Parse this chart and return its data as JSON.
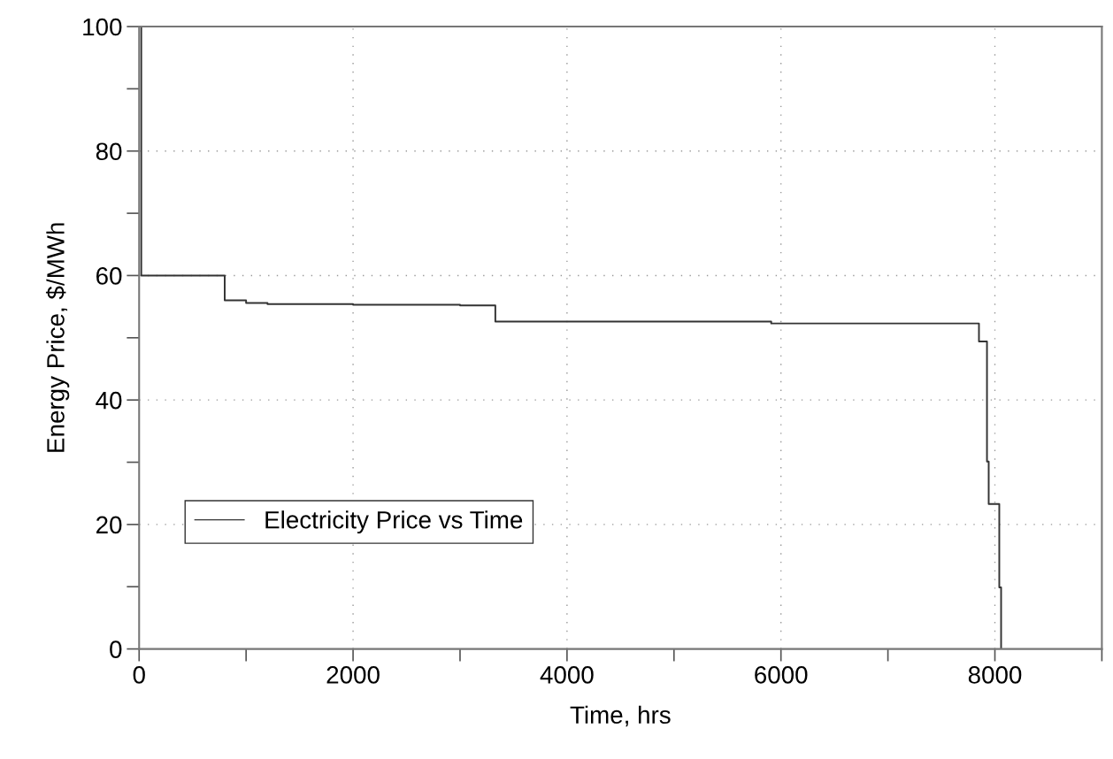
{
  "chart_data": {
    "type": "step",
    "xlabel": "Time, hrs",
    "ylabel": "Energy Price, $/MWh",
    "x": [
      0,
      20,
      800,
      1000,
      1200,
      2000,
      3000,
      3330,
      5909,
      7851,
      7926,
      7942,
      8041,
      8058
    ],
    "series": [
      {
        "name": "Electricity Price vs Time",
        "color": "#333333",
        "values": [
          100,
          60,
          56,
          55.6,
          55.4,
          55.3,
          55.2,
          52.6,
          52.3,
          49.4,
          30.1,
          23.3,
          9.9,
          0
        ]
      }
    ],
    "xlim": [
      0,
      9000
    ],
    "ylim": [
      0,
      100
    ],
    "xticks": [
      0,
      {
        "value": 1000,
        "label": null
      },
      2000,
      {
        "value": 3000,
        "label": null
      },
      4000,
      {
        "value": 5000,
        "label": null
      },
      6000,
      {
        "value": 7000,
        "label": null
      },
      8000,
      {
        "value": 9000,
        "label": null
      }
    ],
    "yticks": [
      0,
      {
        "value": 10,
        "label": null
      },
      20,
      {
        "value": 30,
        "label": null
      },
      40,
      {
        "value": 50,
        "label": null
      },
      60,
      {
        "value": 70,
        "label": null
      },
      80,
      {
        "value": 90,
        "label": null
      },
      100
    ],
    "grid": true,
    "legend": "bottom left",
    "line_style": "solid"
  }
}
